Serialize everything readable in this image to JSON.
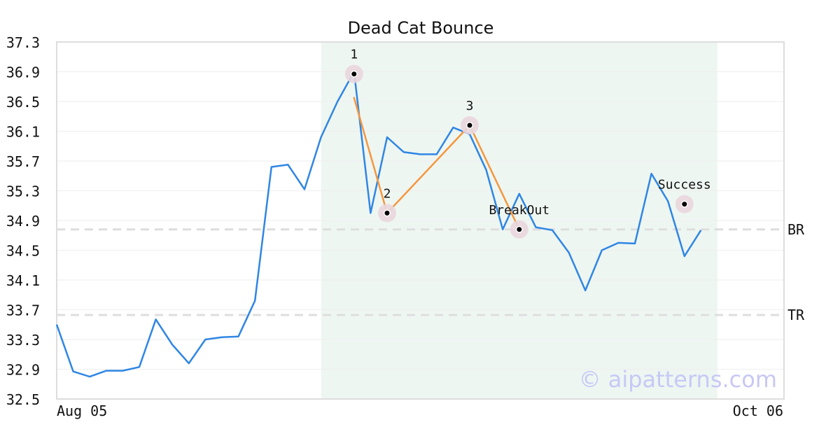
{
  "chart_data": {
    "type": "line",
    "title": "Dead Cat Bounce",
    "xlabel": "",
    "ylabel": "",
    "ylim": [
      32.5,
      37.3
    ],
    "y_ticks": [
      "37.3",
      "36.9",
      "36.5",
      "36.1",
      "35.7",
      "35.3",
      "34.9",
      "34.5",
      "34.1",
      "33.7",
      "33.3",
      "32.9",
      "32.5"
    ],
    "x_tick_labels": [
      {
        "index": 0,
        "label": "Aug 05"
      },
      {
        "index": 44,
        "label": "Oct 06"
      }
    ],
    "grid": true,
    "series": [
      {
        "values": [
          33.5,
          32.87,
          32.8,
          32.88,
          32.88,
          32.93,
          33.57,
          33.23,
          32.98,
          33.3,
          33.33,
          33.34,
          33.82,
          35.62,
          35.65,
          35.32,
          36.02,
          36.5,
          36.9,
          35.0,
          36.02,
          35.82,
          35.79,
          35.79,
          36.15,
          36.06,
          35.58,
          34.78,
          35.26,
          34.81,
          34.77,
          34.47,
          33.96,
          34.5,
          34.6,
          34.59,
          35.53,
          35.16,
          34.42,
          34.77
        ],
        "color": "#2f86e4"
      }
    ],
    "pattern_lines": [
      {
        "from_index": 18.0,
        "from_value": 36.55,
        "to_index": 20.0,
        "to_value": 35.0
      },
      {
        "from_index": 20.0,
        "from_value": 35.0,
        "to_index": 25.0,
        "to_value": 36.18
      },
      {
        "from_index": 25.0,
        "from_value": 36.18,
        "to_index": 28.0,
        "to_value": 34.78
      }
    ],
    "pattern_color": "#f5973d",
    "points": [
      {
        "label": "1",
        "index": 18.0,
        "value": 36.87
      },
      {
        "label": "2",
        "index": 20.0,
        "value": 35.0
      },
      {
        "label": "3",
        "index": 25.0,
        "value": 36.18
      },
      {
        "label": "BreakOut",
        "index": 28.0,
        "value": 34.78
      },
      {
        "label": "Success",
        "index": 38.0,
        "value": 35.12
      }
    ],
    "hlines": [
      {
        "label": "BR",
        "value": 34.78
      },
      {
        "label": "TR",
        "value": 33.63
      }
    ],
    "shaded_region": {
      "from_index": 16.0,
      "to_index": 40.0,
      "color": "#eef6f2"
    },
    "colors": {
      "line": "#2f86e4",
      "pattern": "#f5973d",
      "point_halo": "#e9d7de",
      "hline": "#dddddd",
      "grid": "#eeeeee",
      "frame": "#dddddd"
    }
  },
  "watermark": "© aipatterns.com"
}
